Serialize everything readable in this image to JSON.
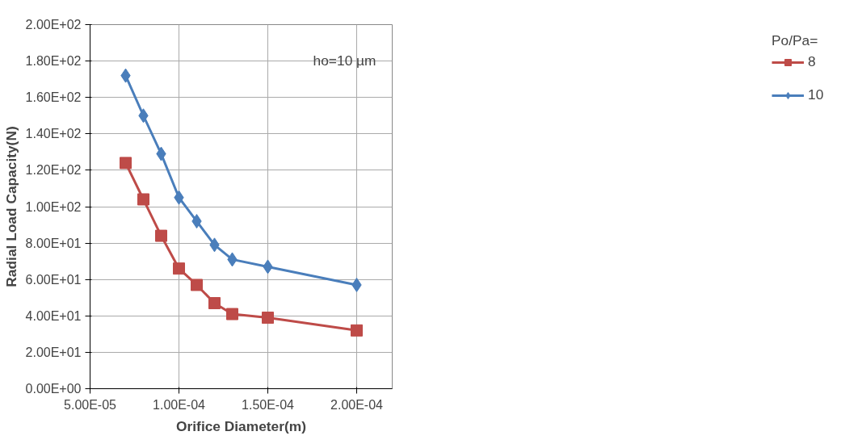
{
  "chart_data": {
    "type": "line",
    "xlabel": "Orifice Diameter(m)",
    "ylabel": "Radial Load Capacity(N)",
    "legend_title": "Po/Pa=",
    "annotations": [
      "ho=10 µm"
    ],
    "x": [
      7e-05,
      8e-05,
      9e-05,
      0.0001,
      0.00011,
      0.00012,
      0.00013,
      0.00015,
      0.0002
    ],
    "series": [
      {
        "name": "8",
        "color": "#be4b48",
        "marker": "square",
        "values": [
          124,
          104,
          84,
          66,
          57,
          47,
          41,
          39,
          32
        ]
      },
      {
        "name": "10",
        "color": "#4a7ebb",
        "marker": "diamond",
        "values": [
          172,
          150,
          129,
          105,
          92,
          79,
          71,
          67,
          57
        ]
      }
    ],
    "xlim": [
      5e-05,
      0.00022
    ],
    "xticks": [
      {
        "value": 5e-05,
        "label": "5.00E-05"
      },
      {
        "value": 0.0001,
        "label": "1.00E-04"
      },
      {
        "value": 0.00015,
        "label": "1.50E-04"
      },
      {
        "value": 0.0002,
        "label": "2.00E-04"
      }
    ],
    "ylim": [
      0,
      200
    ],
    "yticks": [
      {
        "value": 0,
        "label": "0.00E+00"
      },
      {
        "value": 20,
        "label": "2.00E+01"
      },
      {
        "value": 40,
        "label": "4.00E+01"
      },
      {
        "value": 60,
        "label": "6.00E+01"
      },
      {
        "value": 80,
        "label": "8.00E+01"
      },
      {
        "value": 100,
        "label": "1.00E+02"
      },
      {
        "value": 120,
        "label": "1.20E+02"
      },
      {
        "value": 140,
        "label": "1.40E+02"
      },
      {
        "value": 160,
        "label": "1.60E+02"
      },
      {
        "value": 180,
        "label": "1.80E+02"
      },
      {
        "value": 200,
        "label": "2.00E+02"
      }
    ],
    "grid": true,
    "legend": "right",
    "line_style": "solid"
  }
}
